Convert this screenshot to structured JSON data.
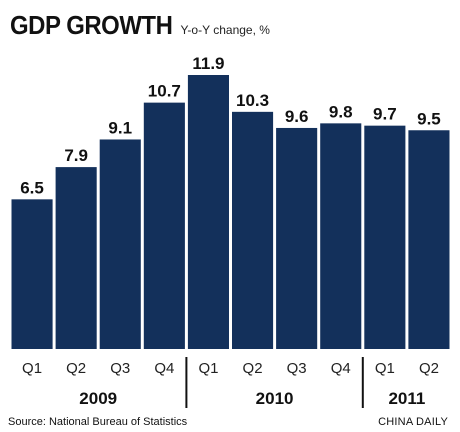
{
  "chart_data": {
    "type": "bar",
    "title": "GDP GROWTH",
    "subtitle": "Y-o-Y change, %",
    "categories": [
      "Q1",
      "Q2",
      "Q3",
      "Q4",
      "Q1",
      "Q2",
      "Q3",
      "Q4",
      "Q1",
      "Q2"
    ],
    "groups": [
      {
        "label": "2009",
        "count": 4
      },
      {
        "label": "2010",
        "count": 4
      },
      {
        "label": "2011",
        "count": 2
      }
    ],
    "values": [
      6.5,
      7.9,
      9.1,
      10.7,
      11.9,
      10.3,
      9.6,
      9.8,
      9.7,
      9.5
    ],
    "value_labels": [
      "6.5",
      "7.9",
      "9.1",
      "10.7",
      "11.9",
      "10.3",
      "9.6",
      "9.8",
      "9.7",
      "9.5"
    ],
    "ylim": [
      0,
      11.9
    ],
    "bar_color": "#13305b",
    "grid": false
  },
  "source": "Source: National Bureau of Statistics",
  "credit": "CHINA DAILY"
}
